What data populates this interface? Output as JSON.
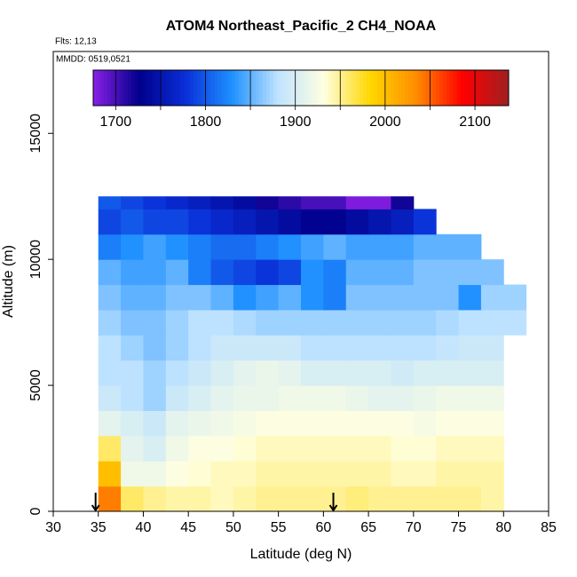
{
  "chart_data": {
    "type": "heatmap",
    "title": "ATOM4 Northeast_Pacific_2 CH4_NOAA",
    "annotations": [
      "Flts: 12,13",
      "MMDD: 0519,0521"
    ],
    "x_label": "Latitude (deg N)",
    "y_label": "Altitude (m)",
    "xlim": [
      30,
      85
    ],
    "xticks": [
      30,
      35,
      40,
      45,
      50,
      55,
      60,
      65,
      70,
      75,
      80,
      85
    ],
    "ylim": [
      0,
      18250
    ],
    "yticks": [
      0,
      5000,
      10000,
      15000
    ],
    "zlim": [
      1675,
      2137.5
    ],
    "zticks": [
      1700,
      1800,
      1900,
      2000,
      2100
    ],
    "zbreaks": [
      1700,
      1750,
      1800,
      1850,
      1900,
      1950,
      2000,
      2050,
      2100
    ],
    "colorscale": [
      "#8a1fe6",
      "#00008b",
      "#0a2fd8",
      "#1e90ff",
      "#bfe3ff",
      "#ffffe0",
      "#ffd700",
      "#ff8c00",
      "#ff0000",
      "#9e2020"
    ],
    "x_bins": [
      35,
      37.5,
      40,
      42.5,
      45,
      47.5,
      50,
      52.5,
      55,
      57.5,
      60,
      62.5,
      65,
      67.5,
      70,
      72.5,
      75,
      77.5,
      80,
      82.5
    ],
    "y_bins": [
      0,
      1000,
      2000,
      3000,
      4000,
      5000,
      6000,
      7000,
      8000,
      9000,
      10000,
      11000,
      12000,
      12500
    ],
    "values": [
      [
        2040,
        1960,
        1950,
        1945,
        1945,
        1940,
        1945,
        1950,
        1950,
        1950,
        1950,
        1955,
        1950,
        1950,
        1950,
        1950,
        1950,
        1945,
        null
      ],
      [
        2000,
        1920,
        1920,
        1930,
        1935,
        1940,
        1940,
        1945,
        1945,
        1945,
        1945,
        1945,
        1945,
        1940,
        1940,
        1945,
        1945,
        1945,
        null
      ],
      [
        1960,
        1910,
        1900,
        1920,
        1930,
        1930,
        1935,
        1940,
        1940,
        1940,
        1940,
        1940,
        1940,
        1935,
        1935,
        1940,
        1940,
        1940,
        null
      ],
      [
        1910,
        1900,
        1890,
        1910,
        1915,
        1920,
        1925,
        1930,
        1930,
        1930,
        1930,
        1930,
        1930,
        1930,
        1925,
        1930,
        1930,
        1930,
        null
      ],
      [
        1890,
        1880,
        1870,
        1890,
        1900,
        1910,
        1915,
        1915,
        1920,
        1920,
        1920,
        1915,
        1910,
        1910,
        1915,
        1920,
        1920,
        1920,
        null
      ],
      [
        1880,
        1880,
        1870,
        1880,
        1890,
        1900,
        1910,
        1915,
        1910,
        1900,
        1900,
        1900,
        1900,
        1895,
        1900,
        1900,
        1900,
        1900,
        null
      ],
      [
        1880,
        1870,
        1860,
        1870,
        1880,
        1890,
        1890,
        1890,
        1890,
        1880,
        1880,
        1880,
        1880,
        1880,
        1880,
        1885,
        1890,
        1890,
        null
      ],
      [
        1870,
        1860,
        1860,
        1870,
        1880,
        1880,
        1875,
        1870,
        1870,
        1870,
        1870,
        1870,
        1870,
        1870,
        1870,
        1875,
        1880,
        1880,
        1880
      ],
      [
        1860,
        1850,
        1850,
        1860,
        1860,
        1850,
        1830,
        1840,
        1850,
        1830,
        1820,
        1860,
        1860,
        1860,
        1860,
        1860,
        1830,
        1870,
        1870
      ],
      [
        1850,
        1840,
        1840,
        1850,
        1820,
        1800,
        1790,
        1780,
        1790,
        1830,
        1820,
        1850,
        1850,
        1850,
        1860,
        1860,
        1860,
        1860,
        null
      ],
      [
        1820,
        1830,
        1840,
        1830,
        1820,
        1810,
        1810,
        1820,
        1830,
        1840,
        1850,
        1840,
        1840,
        1840,
        1850,
        1850,
        1850,
        null,
        null
      ],
      [
        1790,
        1800,
        1790,
        1790,
        1780,
        1770,
        1760,
        1750,
        1740,
        1730,
        1730,
        1740,
        1750,
        1760,
        1780,
        null,
        null,
        null,
        null
      ],
      [
        1800,
        1790,
        1780,
        1770,
        1760,
        1750,
        1740,
        1720,
        1710,
        1700,
        1700,
        1680,
        1680,
        1720,
        null,
        null,
        null,
        null,
        null
      ]
    ],
    "arrows_x": [
      34.7,
      61.1
    ]
  }
}
